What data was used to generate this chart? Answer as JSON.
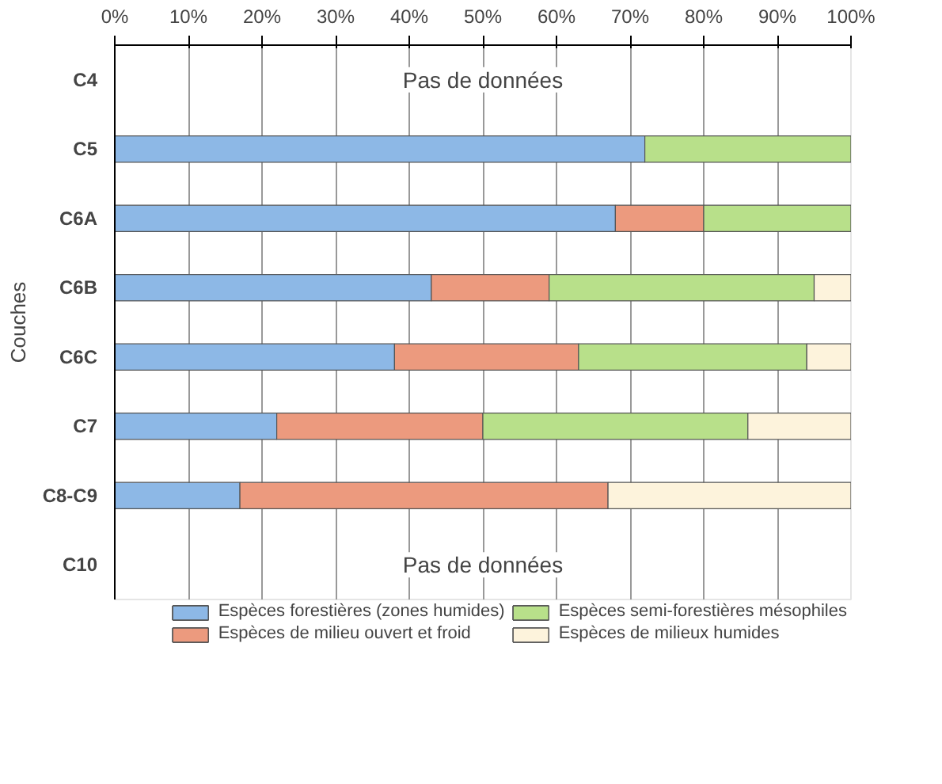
{
  "chart_data": {
    "type": "bar",
    "orientation": "horizontal",
    "stacked": true,
    "ylabel": "Couches",
    "categories": [
      "C4",
      "C5",
      "C6A",
      "C6B",
      "C6C",
      "C7",
      "C8-C9",
      "C10"
    ],
    "series": [
      {
        "name": "Espèces forestières (zones humides)",
        "color": "#8db8e6",
        "values": [
          null,
          72,
          68,
          43,
          38,
          22,
          17,
          null
        ]
      },
      {
        "name": "Espèces de milieu ouvert et froid",
        "color": "#ec9a7e",
        "values": [
          null,
          0,
          12,
          16,
          25,
          28,
          50,
          null
        ]
      },
      {
        "name": "Espèces semi-forestières mésophiles",
        "color": "#b8e08a",
        "values": [
          null,
          28,
          20,
          36,
          31,
          36,
          0,
          null
        ]
      },
      {
        "name": "Espèces de milieux humides",
        "color": "#fdf3dc",
        "values": [
          null,
          0,
          0,
          5,
          6,
          14,
          33,
          null
        ]
      }
    ],
    "xlim": [
      0,
      100
    ],
    "xticks": [
      {
        "value": 0,
        "label": "0%"
      },
      {
        "value": 10,
        "label": "10%"
      },
      {
        "value": 20,
        "label": "20%"
      },
      {
        "value": 30,
        "label": "30%"
      },
      {
        "value": 40,
        "label": "40%"
      },
      {
        "value": 50,
        "label": "50%"
      },
      {
        "value": 60,
        "label": "60%"
      },
      {
        "value": 70,
        "label": "70%"
      },
      {
        "value": 80,
        "label": "80%"
      },
      {
        "value": 90,
        "label": "90%"
      },
      {
        "value": 100,
        "label": "100%"
      }
    ],
    "annotations": [
      "Pas de données",
      "Pas de données"
    ],
    "grid": "x",
    "legend": "bottom"
  }
}
